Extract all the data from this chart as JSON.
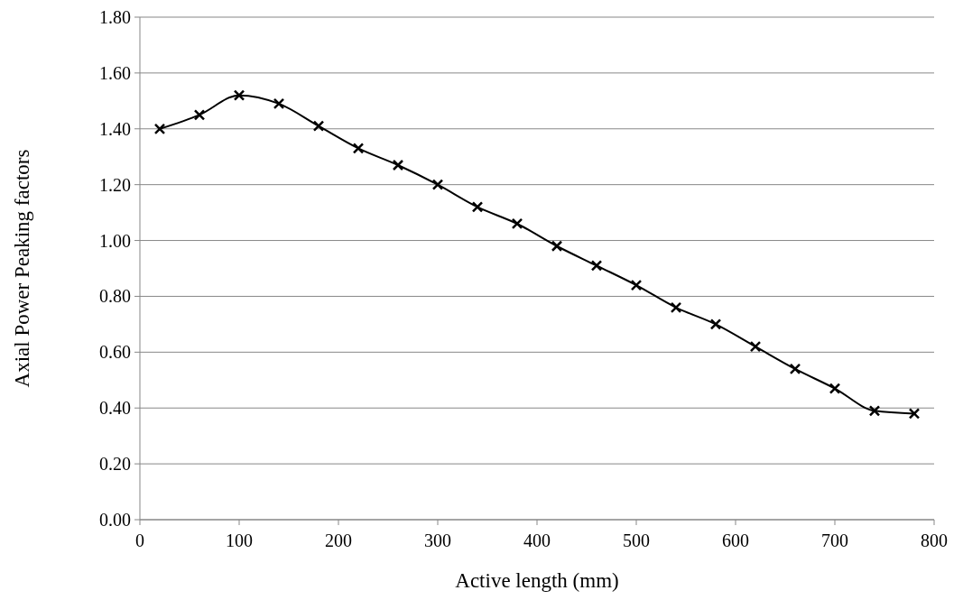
{
  "chart_data": {
    "type": "line",
    "xlabel": "Active length (mm)",
    "ylabel": "Axial Power Peaking factors",
    "x": [
      20,
      60,
      100,
      140,
      180,
      220,
      260,
      300,
      340,
      380,
      420,
      460,
      500,
      540,
      580,
      620,
      660,
      700,
      740,
      780
    ],
    "series": [
      {
        "color": "#000000",
        "values": [
          1.4,
          1.45,
          1.52,
          1.49,
          1.41,
          1.33,
          1.27,
          1.2,
          1.12,
          1.06,
          0.98,
          0.91,
          0.84,
          0.76,
          0.7,
          0.62,
          0.54,
          0.47,
          0.39,
          0.38
        ]
      }
    ],
    "xlim": [
      0,
      800
    ],
    "xticks": [
      0,
      100,
      200,
      300,
      400,
      500,
      600,
      700,
      800
    ],
    "ylim": [
      0,
      1.8
    ],
    "yticks": [
      {
        "value": 0,
        "label": "0.00"
      },
      {
        "value": 0.2,
        "label": "0.20"
      },
      {
        "value": 0.4,
        "label": "0.40"
      },
      {
        "value": 0.6,
        "label": "0.60"
      },
      {
        "value": 0.8,
        "label": "0.80"
      },
      {
        "value": 1,
        "label": "1.00"
      },
      {
        "value": 1.2,
        "label": "1.20"
      },
      {
        "value": 1.4,
        "label": "1.40"
      },
      {
        "value": 1.6,
        "label": "1.60"
      },
      {
        "value": 1.8,
        "label": "1.80"
      }
    ],
    "grid": "y",
    "marker": "cross",
    "line_style": "solid"
  }
}
